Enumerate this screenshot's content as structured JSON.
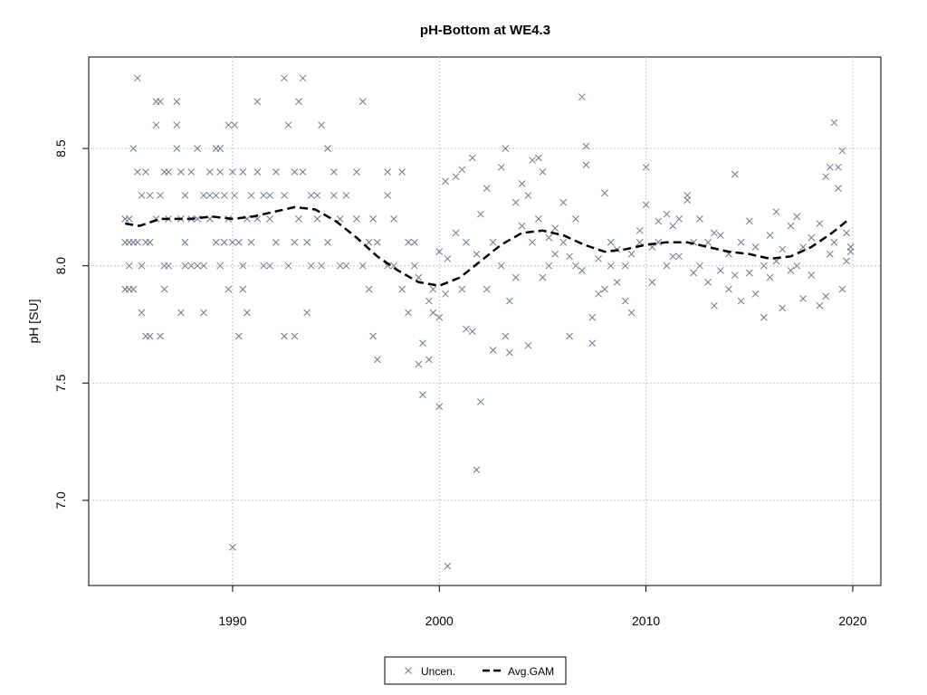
{
  "chart_data": {
    "type": "scatter",
    "title": "pH-Bottom at WE4.3",
    "ylabel": "pH [SU]",
    "xlim": [
      1983.04,
      2021.36
    ],
    "ylim": [
      6.637,
      8.89
    ],
    "xticks": [
      1990,
      2000,
      2010,
      2020
    ],
    "yticks": [
      {
        "value": 7,
        "label": "7.0"
      },
      7.5,
      {
        "value": 8,
        "label": "8.0"
      },
      8.5
    ],
    "grid": true,
    "legend": "bottom",
    "series": [
      {
        "name": "Uncen.",
        "color": "#6b7b8c",
        "marker": "x",
        "x": [
          1984.8,
          1984.8,
          1984.8,
          1985.0,
          1985.0,
          1985.0,
          1985.0,
          1985.2,
          1985.2,
          1985.2,
          1985.4,
          1985.4,
          1985.4,
          1985.6,
          1985.6,
          1985.6,
          1985.8,
          1985.8,
          1985.8,
          1986.0,
          1986.0,
          1986.0,
          1986.3,
          1986.3,
          1986.3,
          1986.5,
          1986.5,
          1986.5,
          1986.7,
          1986.7,
          1986.7,
          1986.9,
          1986.9,
          1986.9,
          1987.3,
          1987.3,
          1987.3,
          1987.5,
          1987.5,
          1987.5,
          1987.7,
          1987.7,
          1987.7,
          1988.0,
          1988.0,
          1988.0,
          1988.3,
          1988.3,
          1988.3,
          1988.6,
          1988.6,
          1988.6,
          1988.9,
          1988.9,
          1988.9,
          1989.2,
          1989.2,
          1989.2,
          1989.4,
          1989.4,
          1989.4,
          1989.6,
          1989.6,
          1989.8,
          1989.8,
          1989.8,
          1990.0,
          1990.0,
          1990.0,
          1990.1,
          1990.1,
          1990.3,
          1990.3,
          1990.5,
          1990.5,
          1990.5,
          1990.7,
          1990.7,
          1990.9,
          1990.9,
          1991.2,
          1991.2,
          1991.2,
          1991.5,
          1991.5,
          1991.8,
          1991.8,
          1991.8,
          1992.1,
          1992.1,
          1992.5,
          1992.5,
          1992.5,
          1992.7,
          1992.7,
          1993.0,
          1993.0,
          1993.0,
          1993.2,
          1993.2,
          1993.4,
          1993.4,
          1993.6,
          1993.6,
          1993.8,
          1993.8,
          1994.1,
          1994.1,
          1994.3,
          1994.3,
          1994.6,
          1994.6,
          1994.9,
          1994.9,
          1995.2,
          1995.2,
          1995.5,
          1995.5,
          1996.0,
          1996.0,
          1996.3,
          1996.3,
          1996.6,
          1996.6,
          1996.8,
          1996.8,
          1997.0,
          1997.0,
          1997.5,
          1997.5,
          1997.5,
          1997.8,
          1997.8,
          1998.2,
          1998.2,
          1998.5,
          1998.5,
          1998.8,
          1998.8,
          1999.0,
          1999.0,
          1999.2,
          1999.2,
          1999.5,
          1999.5,
          1999.7,
          1999.7,
          2000.0,
          2000.0,
          2000.0,
          2000.3,
          2000.3,
          2000.4,
          2000.4,
          2000.8,
          2000.8,
          2001.1,
          2001.1,
          2001.3,
          2001.3,
          2001.6,
          2001.6,
          2001.8,
          2001.8,
          2002.0,
          2002.0,
          2002.3,
          2002.3,
          2002.6,
          2002.6,
          2003.0,
          2003.0,
          2003.2,
          2003.2,
          2003.4,
          2003.4,
          2003.7,
          2003.7,
          2004.0,
          2004.0,
          2004.3,
          2004.3,
          2004.5,
          2004.5,
          2004.8,
          2004.8,
          2005.0,
          2005.0,
          2005.3,
          2005.3,
          2005.6,
          2005.6,
          2006.0,
          2006.0,
          2006.3,
          2006.3,
          2006.6,
          2006.6,
          2006.9,
          2006.9,
          2007.1,
          2007.1,
          2007.4,
          2007.4,
          2007.7,
          2007.7,
          2008.0,
          2008.0,
          2008.3,
          2008.3,
          2008.6,
          2008.6,
          2009.0,
          2009.0,
          2009.3,
          2009.3,
          2009.7,
          2009.7,
          2010.0,
          2010.0,
          2010.3,
          2010.3,
          2010.6,
          2010.6,
          2011.0,
          2011.0,
          2011.3,
          2011.3,
          2011.6,
          2011.6,
          2012.0,
          2012.0,
          2012.3,
          2012.3,
          2012.6,
          2012.6,
          2013.0,
          2013.0,
          2013.3,
          2013.3,
          2013.6,
          2013.6,
          2014.0,
          2014.0,
          2014.3,
          2014.3,
          2014.6,
          2014.6,
          2015.0,
          2015.0,
          2015.3,
          2015.3,
          2015.7,
          2015.7,
          2016.0,
          2016.0,
          2016.3,
          2016.3,
          2016.6,
          2016.6,
          2017.0,
          2017.0,
          2017.3,
          2017.3,
          2017.6,
          2017.6,
          2018.0,
          2018.0,
          2018.4,
          2018.4,
          2018.7,
          2018.7,
          2018.9,
          2018.9,
          2019.1,
          2019.1,
          2019.3,
          2019.3,
          2019.5,
          2019.5,
          2019.7,
          2019.7,
          2019.9,
          2019.9
        ],
        "values": [
          8.1,
          7.9,
          8.2,
          8.2,
          7.9,
          8.0,
          8.1,
          8.5,
          7.9,
          8.1,
          8.8,
          8.4,
          8.1,
          8.3,
          7.8,
          8.0,
          7.7,
          8.4,
          8.1,
          8.1,
          7.7,
          8.3,
          8.7,
          8.6,
          8.2,
          8.7,
          7.7,
          8.3,
          8.4,
          7.9,
          8.0,
          8.4,
          8.0,
          8.2,
          8.7,
          8.6,
          8.5,
          8.4,
          8.2,
          7.8,
          8.1,
          8.0,
          8.3,
          8.4,
          8.2,
          8.0,
          8.5,
          8.2,
          8.0,
          8.3,
          7.8,
          8.0,
          8.4,
          8.3,
          8.2,
          8.5,
          8.1,
          8.3,
          8.5,
          8.4,
          8.0,
          8.1,
          8.3,
          8.6,
          7.9,
          8.2,
          6.8,
          8.4,
          8.1,
          8.6,
          8.3,
          7.7,
          8.1,
          8.4,
          7.9,
          8.0,
          7.8,
          8.2,
          8.3,
          8.1,
          8.7,
          8.4,
          8.2,
          8.3,
          8.0,
          8.2,
          8.0,
          8.3,
          8.1,
          8.4,
          8.8,
          8.3,
          7.7,
          8.6,
          8.0,
          8.4,
          7.7,
          8.1,
          8.7,
          8.2,
          8.8,
          8.4,
          7.8,
          8.1,
          8.3,
          8.0,
          8.3,
          8.2,
          8.6,
          8.0,
          8.5,
          8.1,
          8.3,
          8.4,
          8.0,
          8.2,
          8.3,
          8.0,
          8.4,
          8.2,
          8.7,
          8.0,
          7.9,
          8.1,
          7.7,
          8.2,
          7.6,
          8.1,
          8.4,
          8.0,
          8.3,
          8.2,
          8.0,
          8.4,
          7.9,
          8.1,
          7.8,
          8.1,
          8.0,
          7.95,
          7.58,
          7.67,
          7.45,
          7.6,
          7.85,
          7.8,
          7.9,
          7.4,
          8.06,
          7.78,
          8.36,
          7.88,
          6.72,
          8.03,
          8.38,
          8.14,
          8.41,
          7.9,
          7.73,
          8.1,
          7.72,
          8.46,
          7.13,
          8.05,
          7.42,
          8.22,
          8.33,
          7.9,
          7.64,
          8.1,
          8.42,
          8.0,
          8.5,
          7.7,
          7.63,
          7.85,
          8.27,
          7.95,
          8.17,
          8.35,
          7.66,
          8.3,
          8.45,
          8.1,
          8.46,
          8.2,
          8.4,
          7.95,
          8.12,
          8.0,
          8.16,
          8.05,
          8.27,
          8.1,
          7.7,
          8.04,
          8.2,
          8.0,
          8.72,
          7.98,
          8.51,
          8.43,
          7.67,
          7.78,
          7.88,
          8.03,
          8.31,
          7.9,
          8.0,
          8.1,
          7.93,
          8.07,
          7.85,
          8.0,
          7.8,
          8.05,
          8.15,
          8.1,
          8.42,
          8.26,
          7.93,
          8.08,
          8.19,
          8.1,
          8.22,
          8.0,
          8.17,
          8.04,
          8.04,
          8.2,
          8.3,
          8.28,
          7.97,
          8.1,
          8.2,
          8.0,
          8.1,
          7.93,
          7.83,
          8.14,
          8.13,
          7.98,
          7.9,
          8.05,
          8.39,
          7.96,
          8.1,
          7.85,
          8.19,
          7.97,
          8.08,
          7.88,
          7.78,
          8.0,
          8.13,
          7.95,
          8.23,
          8.02,
          7.82,
          8.07,
          8.17,
          7.98,
          8.21,
          8.0,
          7.86,
          8.08,
          7.96,
          8.12,
          8.18,
          7.83,
          8.38,
          7.87,
          8.42,
          8.05,
          8.61,
          8.1,
          8.42,
          8.33,
          8.49,
          7.9,
          8.14,
          8.02,
          8.08,
          8.06
        ]
      },
      {
        "name": "Avg.GAM",
        "color": "#000000",
        "style": "dashed",
        "x": [
          1984.8,
          1985.5,
          1986.5,
          1988,
          1989,
          1990,
          1991,
          1992,
          1993,
          1994,
          1995,
          1996,
          1997,
          1998,
          1999,
          2000,
          2001,
          2002,
          2003,
          2004,
          2005,
          2006,
          2007,
          2008,
          2009,
          2010,
          2011,
          2012,
          2013,
          2014,
          2015,
          2016,
          2017,
          2018,
          2019,
          2019.7
        ],
        "values": [
          8.18,
          8.17,
          8.2,
          8.2,
          8.21,
          8.2,
          8.21,
          8.23,
          8.25,
          8.24,
          8.19,
          8.12,
          8.04,
          7.98,
          7.93,
          7.915,
          7.95,
          8.02,
          8.09,
          8.14,
          8.15,
          8.13,
          8.09,
          8.06,
          8.07,
          8.09,
          8.1,
          8.1,
          8.08,
          8.06,
          8.05,
          8.03,
          8.04,
          8.08,
          8.14,
          8.19
        ]
      }
    ]
  }
}
